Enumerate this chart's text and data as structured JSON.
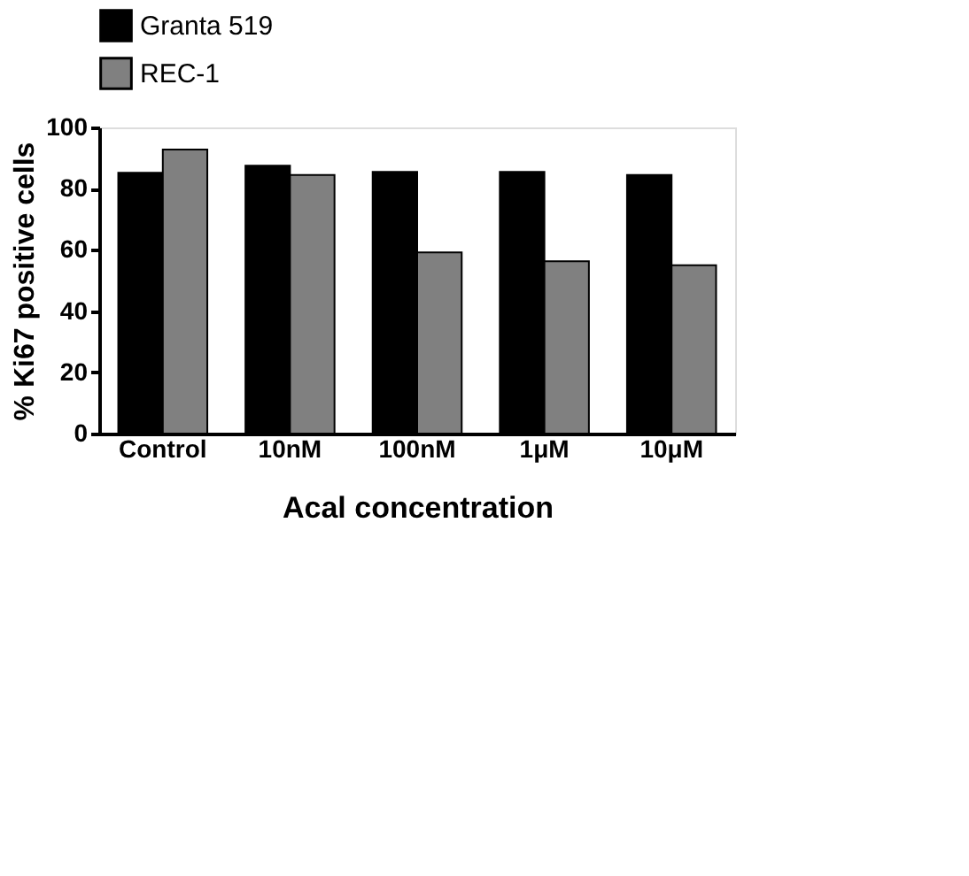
{
  "chart_data": {
    "type": "bar",
    "xlabel": "Acal concentration",
    "ylabel": "% Ki67 positive cells",
    "categories": [
      "Control",
      "10nM",
      "100nM",
      "1μM",
      "10μM"
    ],
    "series": [
      {
        "name": "Granta 519",
        "color": "#000000",
        "values": [
          85.2,
          87.5,
          85.5,
          85.5,
          84.5
        ]
      },
      {
        "name": "REC-1",
        "color": "#808080",
        "values": [
          92.8,
          84.5,
          59.2,
          56.3,
          55
        ]
      }
    ],
    "ylim": [
      0,
      100
    ],
    "yticks": [
      0,
      20,
      40,
      60,
      80,
      100
    ],
    "grid": false,
    "legend": "top"
  }
}
